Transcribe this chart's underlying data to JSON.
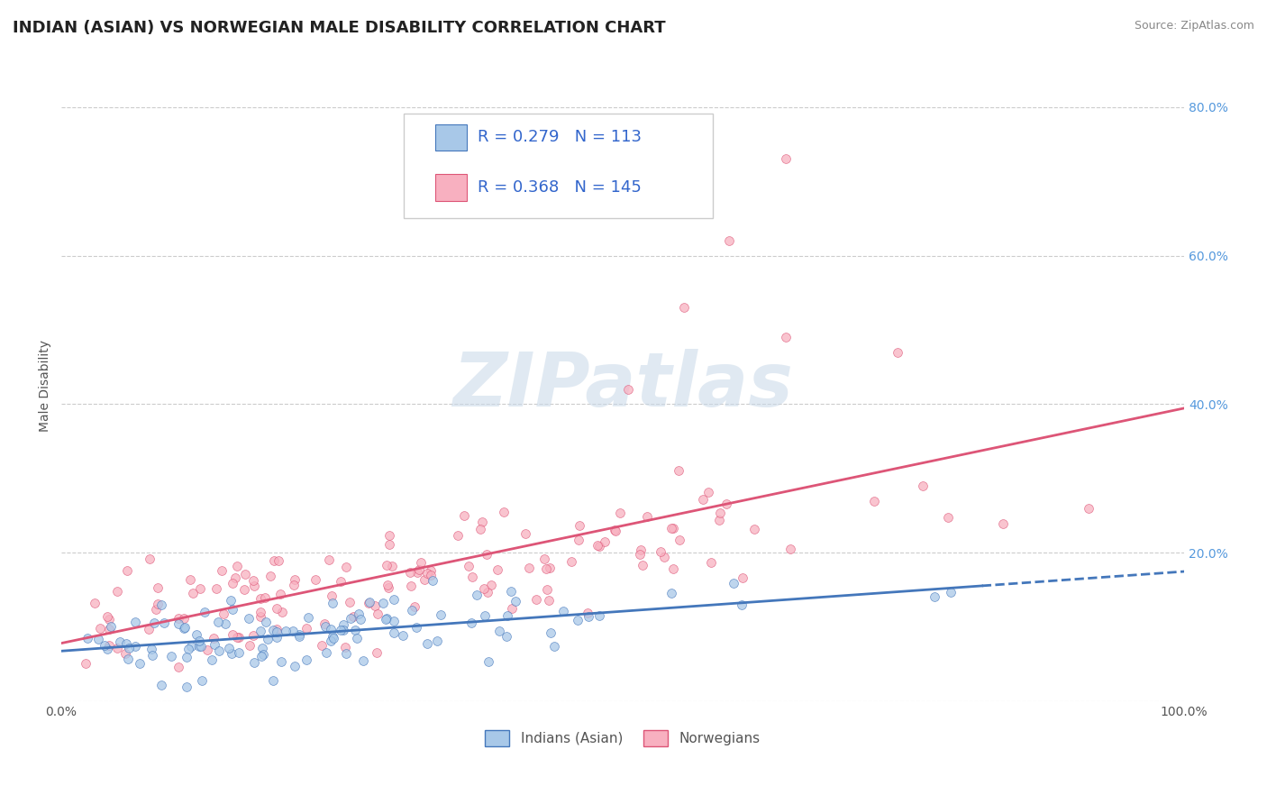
{
  "title": "INDIAN (ASIAN) VS NORWEGIAN MALE DISABILITY CORRELATION CHART",
  "source": "Source: ZipAtlas.com",
  "ylabel": "Male Disability",
  "legend_label1": "Indians (Asian)",
  "legend_label2": "Norwegians",
  "r1": 0.279,
  "n1": 113,
  "r2": 0.368,
  "n2": 145,
  "color1": "#a8c8e8",
  "color2": "#f8b0c0",
  "line_color1": "#4477bb",
  "line_color2": "#dd5577",
  "bg_color": "#ffffff",
  "grid_color": "#cccccc",
  "title_fontsize": 13,
  "tick_fontsize": 10,
  "legend_fontsize": 13,
  "watermark_text": "ZIPatlas",
  "seed1": 42,
  "seed2": 7
}
